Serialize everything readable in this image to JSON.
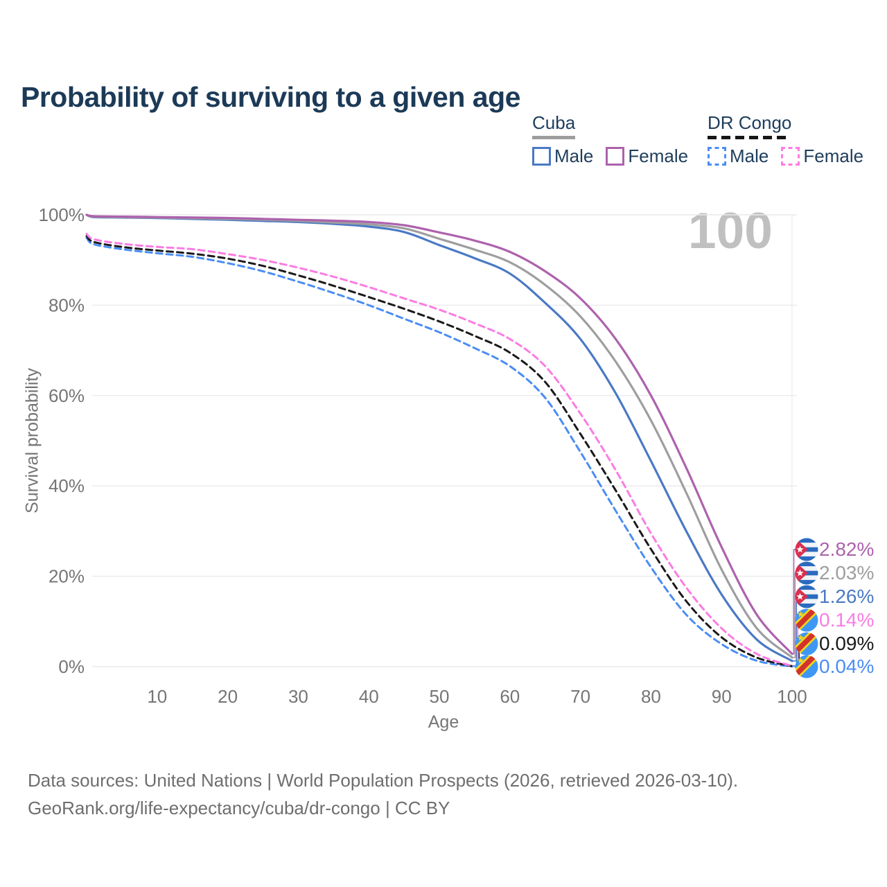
{
  "page": {
    "title": "Probability of surviving to a given age",
    "watermark": "100"
  },
  "legend": {
    "groups": [
      {
        "title": "Cuba",
        "line_style": "solid",
        "underline_color": "#9e9e9e",
        "items": [
          {
            "label": "Male",
            "color": "#4a79c5"
          },
          {
            "label": "Female",
            "color": "#ad62ad"
          }
        ]
      },
      {
        "title": "DR Congo",
        "line_style": "dashed",
        "underline_color": "#161616",
        "items": [
          {
            "label": "Male",
            "color": "#4a8df5"
          },
          {
            "label": "Female",
            "color": "#fb7ce3"
          }
        ]
      }
    ]
  },
  "chart_data": {
    "type": "line",
    "title": "Probability of surviving to a given age",
    "xlabel": "Age",
    "ylabel": "Survival probability",
    "xlim": [
      0,
      100
    ],
    "ylim": [
      0,
      100
    ],
    "grid": "horizontal",
    "x_ticks": [
      {
        "label": "10",
        "value": 10
      },
      {
        "label": "20",
        "value": 20
      },
      {
        "label": "30",
        "value": 30
      },
      {
        "label": "40",
        "value": 40
      },
      {
        "label": "50",
        "value": 50
      },
      {
        "label": "60",
        "value": 60
      },
      {
        "label": "70",
        "value": 70
      },
      {
        "label": "80",
        "value": 80
      },
      {
        "label": "90",
        "value": 90
      },
      {
        "label": "100",
        "value": 100
      }
    ],
    "y_ticks": [
      {
        "label": "100%",
        "value": 100
      },
      {
        "label": "80%",
        "value": 80
      },
      {
        "label": "60%",
        "value": 60
      },
      {
        "label": "40%",
        "value": 40
      },
      {
        "label": "20%",
        "value": 20
      },
      {
        "label": "0%",
        "value": 0
      }
    ],
    "ages": [
      0,
      1,
      5,
      10,
      15,
      20,
      25,
      30,
      35,
      40,
      45,
      50,
      55,
      60,
      65,
      70,
      75,
      80,
      85,
      90,
      95,
      100
    ],
    "series": [
      {
        "name": "Cuba Female",
        "slug": "cuba-female",
        "country": "Cuba",
        "sex": "Female",
        "color": "#ad62ad",
        "dashed": false,
        "end_label": "2.82%",
        "flag": "cuba",
        "values": [
          100,
          99.7,
          99.6,
          99.5,
          99.4,
          99.3,
          99.1,
          98.9,
          98.7,
          98.4,
          97.7,
          96.1,
          94.3,
          91.8,
          87.5,
          81.5,
          72.5,
          60,
          44,
          26.5,
          11.5,
          2.82
        ]
      },
      {
        "name": "Cuba Both sexes",
        "slug": "cuba-both-sexes",
        "country": "Cuba",
        "sex": "Both",
        "color": "#9e9e9e",
        "dashed": false,
        "end_label": "2.03%",
        "flag": "cuba",
        "values": [
          100,
          99.6,
          99.5,
          99.4,
          99.25,
          99.1,
          98.9,
          98.65,
          98.3,
          97.9,
          97,
          94.7,
          92.3,
          89.5,
          84.5,
          77.5,
          67.5,
          54.5,
          38.5,
          21.5,
          8.5,
          2.03
        ]
      },
      {
        "name": "Cuba Male",
        "slug": "cuba-male",
        "country": "Cuba",
        "sex": "Male",
        "color": "#4a79c5",
        "dashed": false,
        "end_label": "1.26%",
        "flag": "cuba",
        "values": [
          100,
          99.5,
          99.4,
          99.3,
          99.1,
          98.9,
          98.65,
          98.4,
          98,
          97.4,
          96.2,
          93.3,
          90.4,
          87,
          80.5,
          72.5,
          60.5,
          45.5,
          30,
          16,
          6,
          1.26
        ]
      },
      {
        "name": "DR Congo Female",
        "slug": "dr-congo-female",
        "country": "DR Congo",
        "sex": "Female",
        "color": "#fb7ce3",
        "dashed": true,
        "end_label": "0.14%",
        "flag": "dr-congo",
        "values": [
          95.8,
          94.6,
          93.6,
          92.9,
          92.4,
          91.3,
          90,
          88.3,
          86.3,
          84,
          81.5,
          79,
          76,
          72.5,
          66.5,
          56,
          43.5,
          29.5,
          17.5,
          8.5,
          2.8,
          0.14
        ]
      },
      {
        "name": "DR Congo Both sexes",
        "slug": "dr-congo-both-sexes",
        "country": "DR Congo",
        "sex": "Both",
        "color": "#1a1a1a",
        "dashed": true,
        "end_label": "0.09%",
        "flag": "dr-congo",
        "values": [
          95.3,
          94,
          92.9,
          92.1,
          91.4,
          90.3,
          88.7,
          86.6,
          84.3,
          81.8,
          79.2,
          76.4,
          73.2,
          69.5,
          63,
          51.5,
          39,
          26,
          14.5,
          6.5,
          2,
          0.09
        ]
      },
      {
        "name": "DR Congo Male",
        "slug": "dr-congo-male",
        "country": "DR Congo",
        "sex": "Male",
        "color": "#4a8df5",
        "dashed": true,
        "end_label": "0.04%",
        "flag": "dr-congo",
        "values": [
          94.9,
          93.5,
          92.4,
          91.5,
          90.7,
          89.3,
          87.5,
          85.2,
          82.7,
          80,
          77,
          74,
          70.5,
          66.5,
          59.5,
          47.5,
          34.5,
          22,
          11.5,
          5,
          1.3,
          0.04
        ]
      }
    ]
  },
  "footer": {
    "line1": "Data sources: United Nations | World Population Prospects (2026, retrieved 2026-03-10).",
    "line2": "GeoRank.org/life-expectancy/cuba/dr-congo | CC BY"
  }
}
